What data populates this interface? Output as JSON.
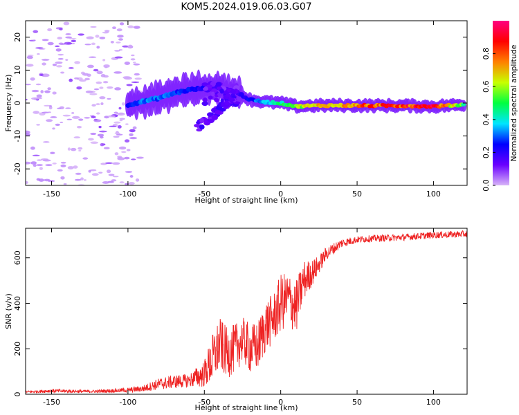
{
  "chart_data": [
    {
      "type": "heatmap",
      "title": "KOM5.2024.019.06.03.G07",
      "xlabel": "Height of straight line (km)",
      "ylabel": "Frequency (Hz)",
      "xlim": [
        -167,
        122
      ],
      "ylim": [
        -25,
        25
      ],
      "xticks": [
        -150,
        -100,
        -50,
        0,
        50,
        100
      ],
      "yticks": [
        -20,
        -10,
        0,
        10,
        20
      ],
      "colorbar": {
        "label": "Normalized spectral amplitude",
        "range": [
          0,
          1
        ],
        "ticks": [
          "0.0",
          "0.2",
          "0.4",
          "0.6",
          "0.8"
        ],
        "colors": [
          "#d8b4f8",
          "#6a00ff",
          "#0000ff",
          "#00e5ff",
          "#00ff40",
          "#c8ff00",
          "#ff8000",
          "#ff0000",
          "#ff0080"
        ]
      },
      "ridge": [
        {
          "x": -100,
          "y": -0.5,
          "amp": 0.25
        },
        {
          "x": -90,
          "y": 0.5,
          "amp": 0.3
        },
        {
          "x": -80,
          "y": 1.5,
          "amp": 0.3
        },
        {
          "x": -70,
          "y": 3.0,
          "amp": 0.28
        },
        {
          "x": -60,
          "y": 4.0,
          "amp": 0.25
        },
        {
          "x": -50,
          "y": 4.5,
          "amp": 0.2
        },
        {
          "x": -40,
          "y": 4.5,
          "amp": 0.15
        },
        {
          "x": -30,
          "y": 3.5,
          "amp": 0.15
        },
        {
          "x": -20,
          "y": 1.0,
          "amp": 0.25
        },
        {
          "x": -10,
          "y": 0.3,
          "amp": 0.35
        },
        {
          "x": 0,
          "y": 0.0,
          "amp": 0.45
        },
        {
          "x": 10,
          "y": -1.0,
          "amp": 0.55
        },
        {
          "x": 20,
          "y": -0.8,
          "amp": 0.65
        },
        {
          "x": 40,
          "y": -0.7,
          "amp": 0.75
        },
        {
          "x": 60,
          "y": -0.8,
          "amp": 0.8
        },
        {
          "x": 80,
          "y": -0.8,
          "amp": 0.82
        },
        {
          "x": 100,
          "y": -1.0,
          "amp": 0.85
        },
        {
          "x": 120,
          "y": -0.5,
          "amp": 0.5
        }
      ],
      "branch": [
        {
          "x": -55,
          "y": -7.5
        },
        {
          "x": -45,
          "y": -4.0
        },
        {
          "x": -38,
          "y": -1.0
        },
        {
          "x": -30,
          "y": 2.0
        }
      ]
    },
    {
      "type": "line",
      "xlabel": "Height of straight line (km)",
      "ylabel": "SNR (v/v)",
      "xlim": [
        -167,
        122
      ],
      "ylim": [
        0,
        730
      ],
      "xticks": [
        -150,
        -100,
        -50,
        0,
        50,
        100
      ],
      "yticks": [
        0,
        200,
        400,
        600
      ],
      "color": "#ee2222",
      "x": [
        -167,
        -150,
        -125,
        -100,
        -90,
        -80,
        -70,
        -60,
        -50,
        -45,
        -40,
        -35,
        -30,
        -25,
        -20,
        -15,
        -10,
        -5,
        0,
        5,
        10,
        15,
        20,
        25,
        30,
        40,
        50,
        60,
        80,
        100,
        122
      ],
      "y": [
        10,
        15,
        12,
        18,
        25,
        45,
        55,
        60,
        90,
        150,
        220,
        180,
        200,
        240,
        200,
        210,
        300,
        330,
        400,
        420,
        380,
        500,
        530,
        570,
        620,
        665,
        680,
        685,
        690,
        700,
        705
      ],
      "noise": [
        5,
        8,
        6,
        10,
        15,
        25,
        30,
        30,
        60,
        110,
        120,
        110,
        110,
        100,
        110,
        110,
        120,
        110,
        130,
        120,
        120,
        90,
        60,
        40,
        30,
        20,
        15,
        15,
        15,
        15,
        15
      ]
    }
  ]
}
